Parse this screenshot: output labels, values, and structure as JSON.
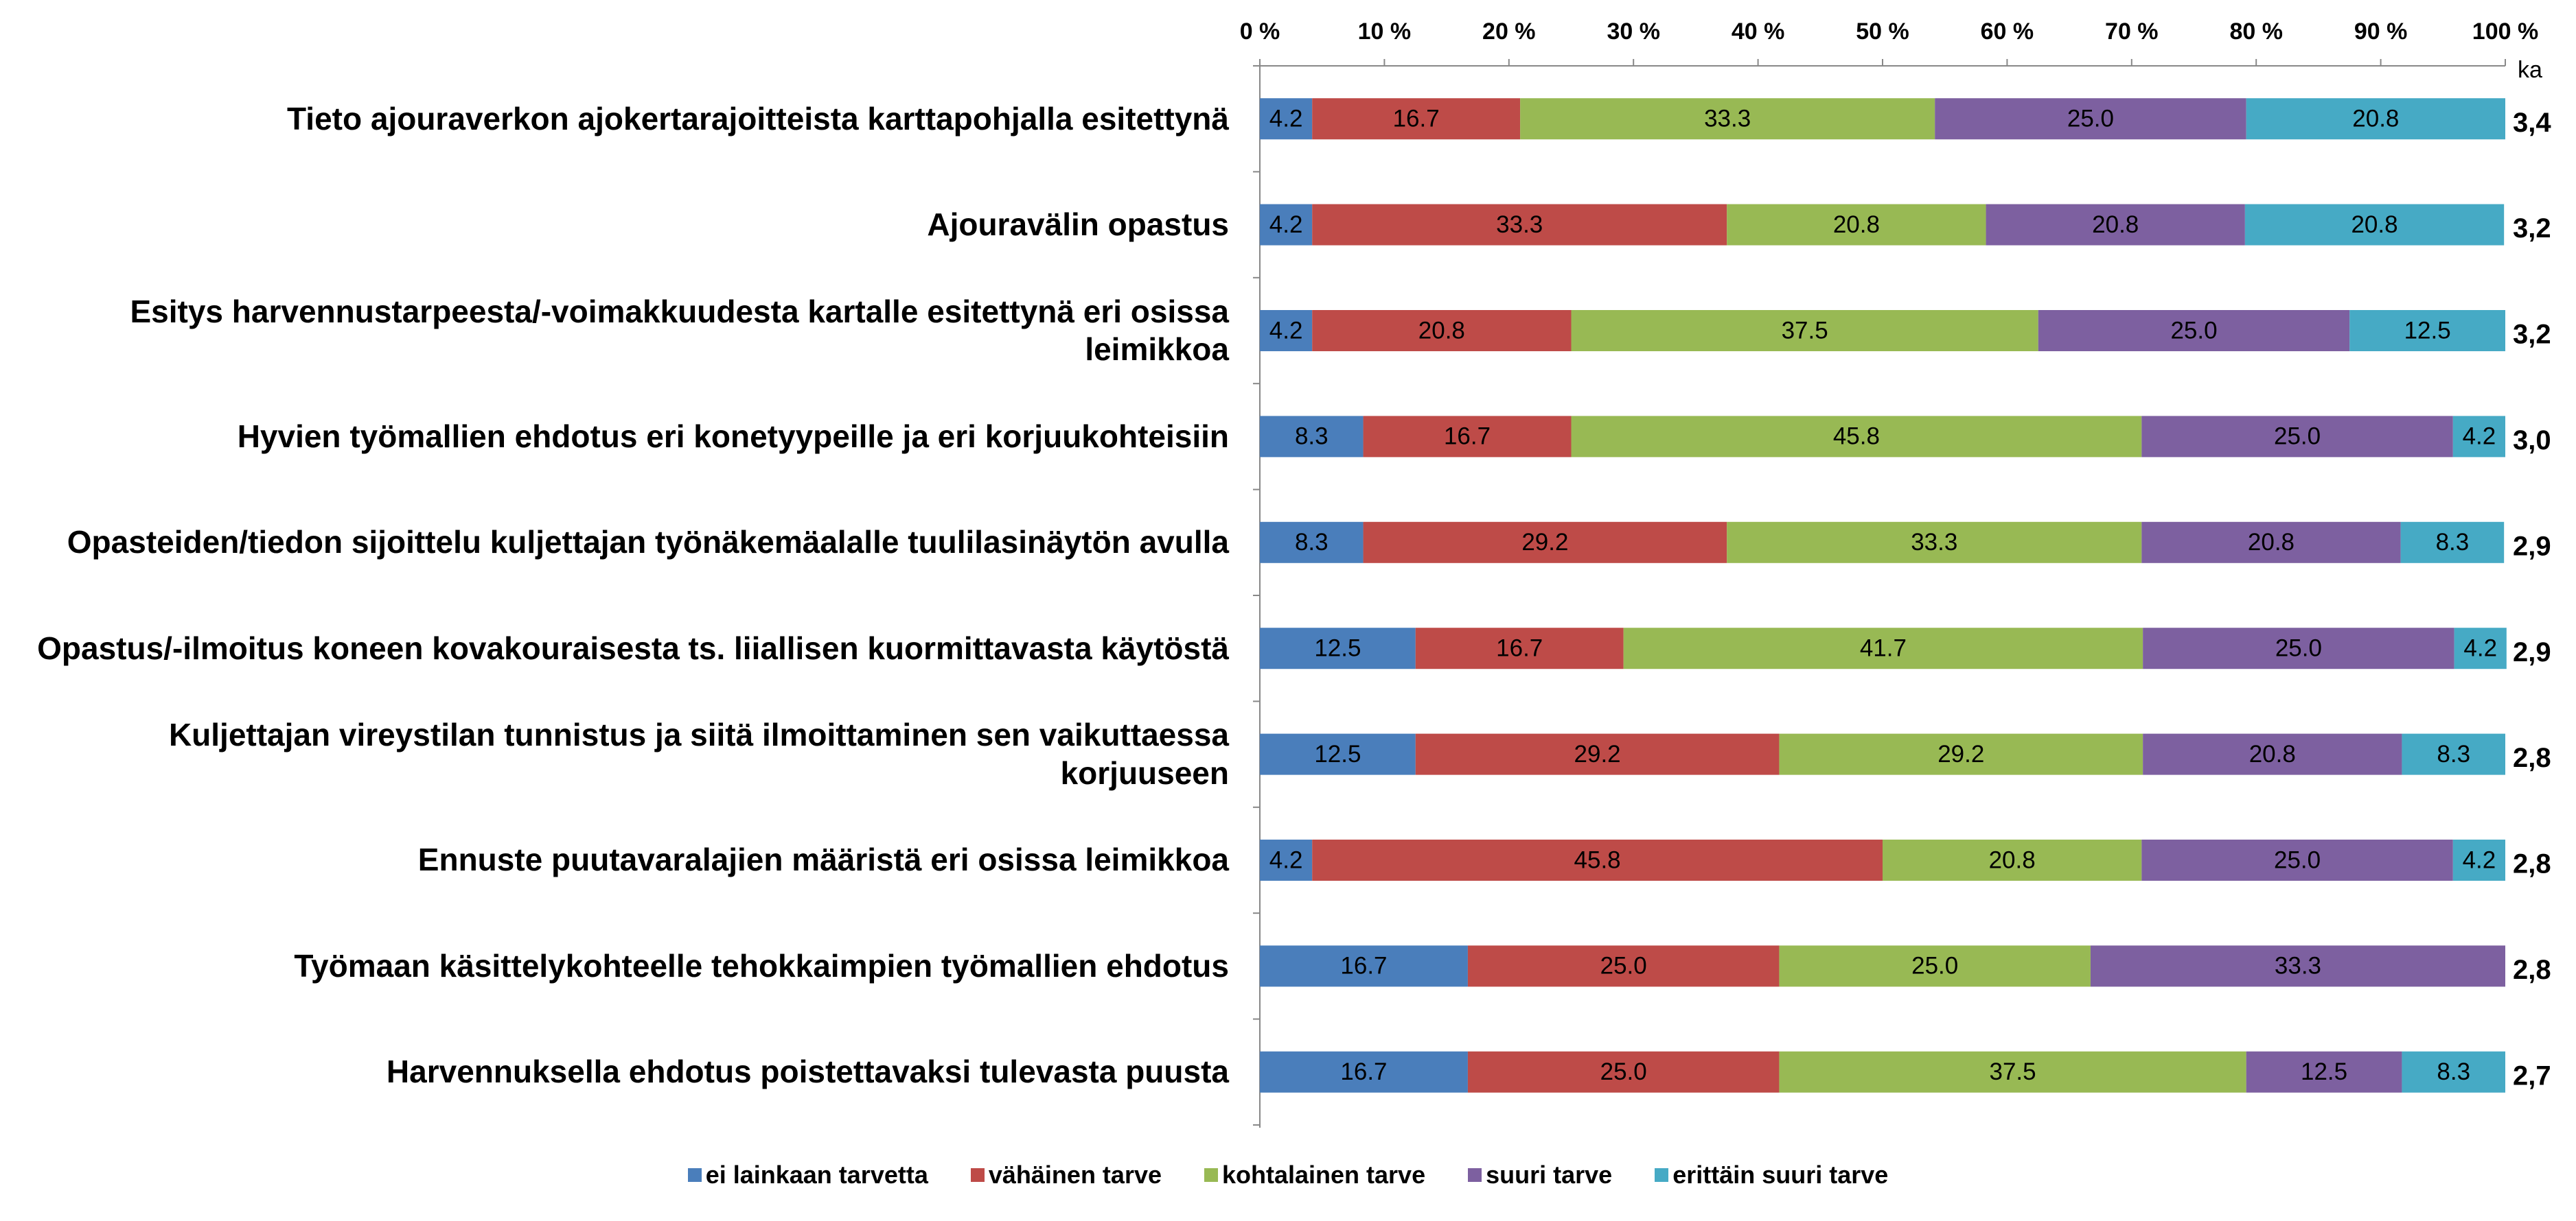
{
  "chart_data": {
    "type": "stacked_bar_horizontal",
    "categories": [
      "Tieto ajouraverkon ajokertarajoitteista karttapohjalla esitettynä",
      "Ajouravälin opastus",
      "Esitys harvennustarpeesta/-voimakkuudesta kartalle esitettynä eri osissa leimikkoa",
      "Hyvien työmallien ehdotus eri konetyypeille ja eri korjuukohteisiin",
      "Opasteiden/tiedon sijoittelu kuljettajan työnäkemäalalle tuulilasinäytön avulla",
      "Opastus/-ilmoitus koneen kovakouraisesta ts. liiallisen kuormittavasta käytöstä",
      "Kuljettajan vireystilan tunnistus ja siitä ilmoittaminen sen vaikuttaessa korjuuseen",
      "Ennuste puutavaralajien määristä eri osissa leimikkoa",
      "Työmaan käsittelykohteelle tehokkaimpien työmallien ehdotus",
      "Harvennuksella ehdotus poistettavaksi tulevasta puusta"
    ],
    "series": [
      {
        "name": "ei lainkaan tarvetta",
        "color": "#4a7ebb",
        "values": [
          4.2,
          4.2,
          4.2,
          8.3,
          8.3,
          12.5,
          12.5,
          4.2,
          16.7,
          16.7
        ],
        "value_labels": [
          "4.2",
          "4.2",
          "4.2",
          "8.3",
          "8.3",
          "12.5",
          "12.5",
          "4.2",
          "16.7",
          "16.7"
        ]
      },
      {
        "name": "vähäinen tarve",
        "color": "#be4b48",
        "values": [
          16.7,
          33.3,
          20.8,
          16.7,
          29.2,
          16.7,
          29.2,
          45.8,
          25.0,
          25.0
        ],
        "value_labels": [
          "16.7",
          "33.3",
          "20.8",
          "16.7",
          "29.2",
          "16.7",
          "29.2",
          "45.8",
          "25.0",
          "25.0"
        ]
      },
      {
        "name": "kohtalainen tarve",
        "color": "#98b954",
        "values": [
          33.3,
          20.8,
          37.5,
          45.8,
          33.3,
          41.7,
          29.2,
          20.8,
          25.0,
          37.5
        ],
        "value_labels": [
          "33.3",
          "20.8",
          "37.5",
          "45.8",
          "33.3",
          "41.7",
          "29.2",
          "20.8",
          "25.0",
          "37.5"
        ]
      },
      {
        "name": "suuri tarve",
        "color": "#7d60a0",
        "values": [
          25.0,
          20.8,
          25.0,
          25.0,
          20.8,
          25.0,
          20.8,
          25.0,
          33.3,
          12.5
        ],
        "value_labels": [
          "25.0",
          "20.8",
          "25.0",
          "25.0",
          "20.8",
          "25.0",
          "20.8",
          "25.0",
          "33.3",
          "12.5"
        ]
      },
      {
        "name": "erittäin suuri tarve",
        "color": "#46aac5",
        "values": [
          20.8,
          20.8,
          12.5,
          4.2,
          8.3,
          4.2,
          8.3,
          4.2,
          0,
          8.3
        ],
        "value_labels": [
          "20.8",
          "20.8",
          "12.5",
          "4.2",
          "8.3",
          "4.2",
          "8.3",
          "4.2",
          null,
          "8.3"
        ]
      }
    ],
    "xlim": [
      0,
      100
    ],
    "xticks": [
      {
        "value": 0,
        "label": "0 %"
      },
      {
        "value": 10,
        "label": "10 %"
      },
      {
        "value": 20,
        "label": "20 %"
      },
      {
        "value": 30,
        "label": "30 %"
      },
      {
        "value": 40,
        "label": "40 %"
      },
      {
        "value": 50,
        "label": "50 %"
      },
      {
        "value": 60,
        "label": "60 %"
      },
      {
        "value": 70,
        "label": "70 %"
      },
      {
        "value": 80,
        "label": "80 %"
      },
      {
        "value": 90,
        "label": "90 %"
      },
      {
        "value": 100,
        "label": "100 %"
      }
    ],
    "grid": false,
    "legend": "bottom",
    "ka": {
      "label": "ka",
      "values": [
        3.4,
        3.2,
        3.2,
        3.0,
        2.9,
        2.9,
        2.8,
        2.8,
        2.8,
        2.7
      ],
      "value_labels": [
        "3,4",
        "3,2",
        "3,2",
        "3,0",
        "2,9",
        "2,9",
        "2,8",
        "2,8",
        "2,8",
        "2,7"
      ]
    }
  }
}
